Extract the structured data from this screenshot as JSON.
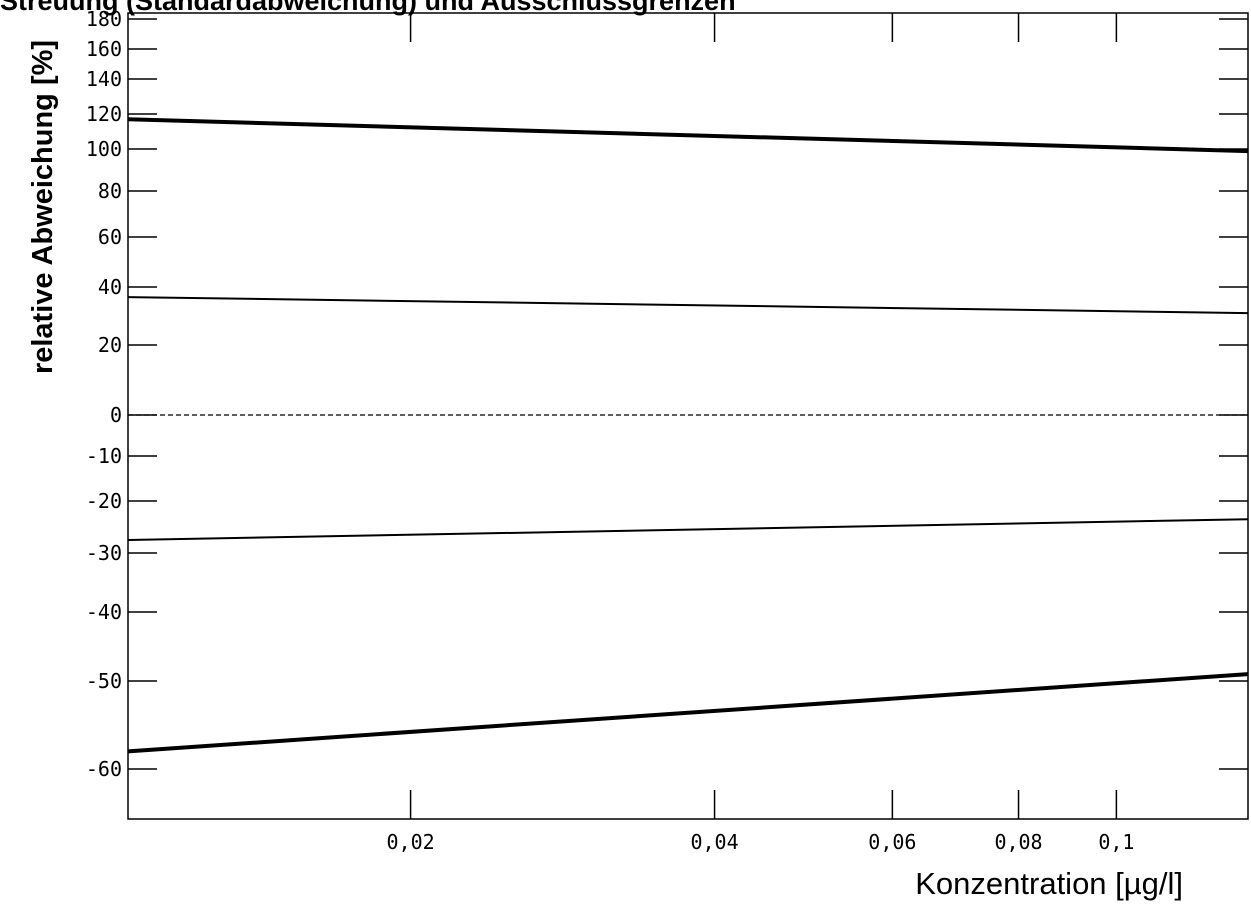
{
  "chart_data": {
    "type": "line",
    "title": "Streuung (Standardabweichung) und Ausschlussgrenzen",
    "xlabel": "Konzentration [µg/l]",
    "ylabel": "relative Abweichung [%]",
    "x_scale": "log",
    "xlim": [
      0.0105,
      0.135
    ],
    "y_scale": "nonlinear",
    "ylim": [
      -70,
      180
    ],
    "x_ticks": [
      {
        "value": 0.02,
        "label": "0,02"
      },
      {
        "value": 0.04,
        "label": "0,04"
      },
      {
        "value": 0.06,
        "label": "0,06"
      },
      {
        "value": 0.08,
        "label": "0,08"
      },
      {
        "value": 0.1,
        "label": "0,1"
      }
    ],
    "y_ticks": [
      {
        "value": 180,
        "label": "180"
      },
      {
        "value": 160,
        "label": "160"
      },
      {
        "value": 140,
        "label": "140"
      },
      {
        "value": 120,
        "label": "120"
      },
      {
        "value": 100,
        "label": "100"
      },
      {
        "value": 80,
        "label": "80"
      },
      {
        "value": 60,
        "label": "60"
      },
      {
        "value": 40,
        "label": "40"
      },
      {
        "value": 20,
        "label": "20"
      },
      {
        "value": 0,
        "label": "0"
      },
      {
        "value": -10,
        "label": "-10"
      },
      {
        "value": -20,
        "label": "-20"
      },
      {
        "value": -30,
        "label": "-30"
      },
      {
        "value": -40,
        "label": "-40"
      },
      {
        "value": -50,
        "label": "-50"
      },
      {
        "value": -60,
        "label": "-60"
      }
    ],
    "series": [
      {
        "style": "thick",
        "x": [
          0.0105,
          0.135
        ],
        "y": [
          117,
          99
        ]
      },
      {
        "style": "thin",
        "x": [
          0.0105,
          0.135
        ],
        "y": [
          36.5,
          31
        ]
      },
      {
        "style": "thin",
        "x": [
          0.0105,
          0.135
        ],
        "y": [
          -27.5,
          -23.5
        ]
      },
      {
        "style": "thick",
        "x": [
          0.0105,
          0.135
        ],
        "y": [
          -58,
          -49
        ]
      }
    ],
    "reference_line": {
      "y": 0,
      "style": "dashed"
    },
    "grid": false,
    "colors": {
      "line": "#000000",
      "background": "#ffffff"
    }
  }
}
